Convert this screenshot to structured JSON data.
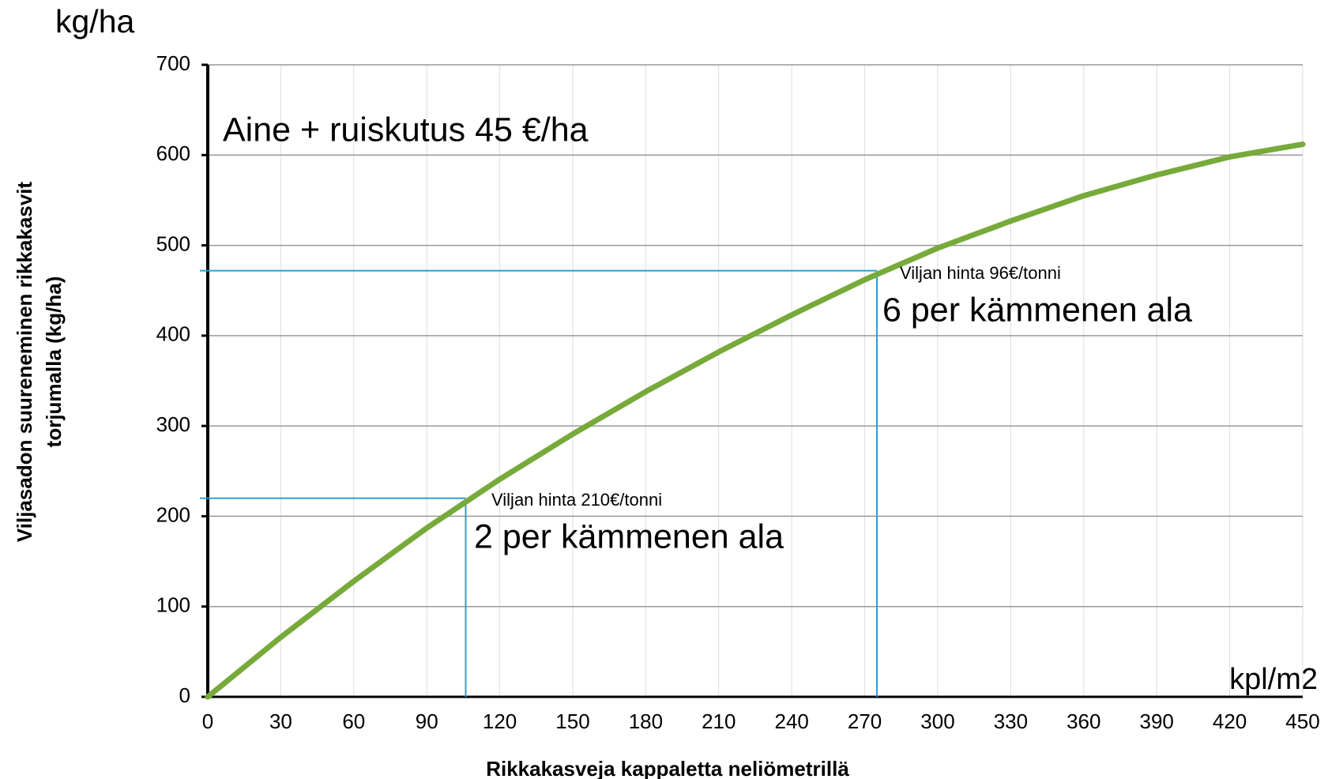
{
  "chart_data": {
    "type": "line",
    "y_unit": "kg/ha",
    "x_unit": "kpl/m2",
    "y_label": [
      "Viljasadon suureneminen rikkakasvit",
      "torjumalla (kg/ha)"
    ],
    "x_label": "Rikkakasveja kappaletta neliömetrillä",
    "x": [
      0,
      30,
      60,
      90,
      120,
      150,
      180,
      210,
      240,
      270,
      300,
      330,
      360,
      390,
      420,
      450
    ],
    "series": [
      {
        "color": "#77aa3a",
        "values": [
          0,
          66,
          128,
          187,
          241,
          291,
          338,
          382,
          423,
          462,
          497,
          527,
          555,
          578,
          598,
          612
        ]
      }
    ],
    "xlim": [
      0,
      450
    ],
    "xticks": [
      0,
      30,
      60,
      90,
      120,
      150,
      180,
      210,
      240,
      270,
      300,
      330,
      360,
      390,
      420,
      450
    ],
    "ylim": [
      0,
      700
    ],
    "yticks": [
      0,
      100,
      200,
      300,
      400,
      500,
      600,
      700
    ],
    "grid": true,
    "reference_lines": [
      {
        "x": 106,
        "y": 220,
        "color": "#2a9fd6"
      },
      {
        "x": 275,
        "y": 472,
        "color": "#2a9fd6"
      }
    ],
    "annotations": [
      "Aine + ruiskutus 45 €/ha",
      "Viljan hinta 96€/tonni",
      "6 per kämmenen ala",
      "Viljan hinta 210€/tonni",
      "2 per kämmenen ala"
    ]
  }
}
